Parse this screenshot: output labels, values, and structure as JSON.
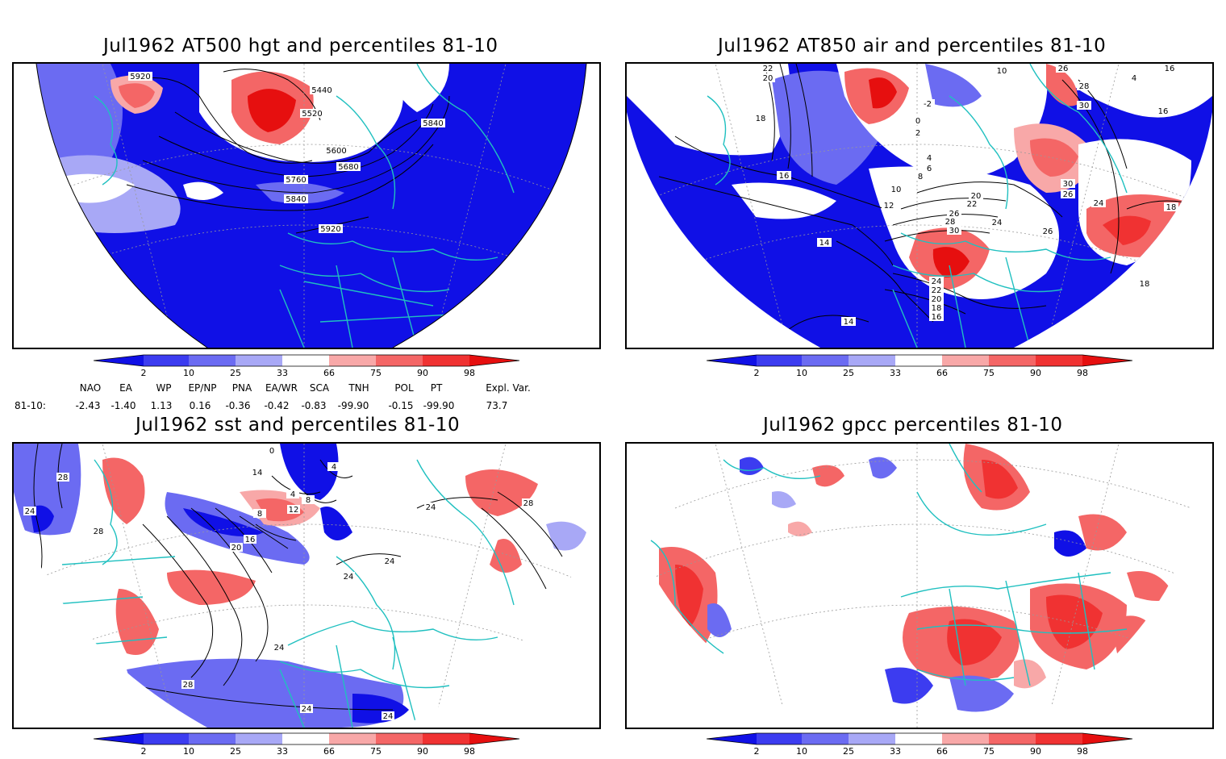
{
  "panels": [
    {
      "title": "Jul1962 AT500 hgt and percentiles 81-10",
      "contour_labels": [
        "5920",
        "5440",
        "5520",
        "5600",
        "5680",
        "5760",
        "5840",
        "5840",
        "5920"
      ]
    },
    {
      "title": "Jul1962 AT850 air and percentiles 81-10",
      "contour_labels": [
        "22",
        "20",
        "18",
        "16",
        "10",
        "12",
        "14",
        "14",
        "8",
        "6",
        "4",
        "2",
        "0",
        "-2",
        "20",
        "22",
        "24",
        "26",
        "28",
        "30",
        "24",
        "22",
        "20",
        "18",
        "16",
        "24",
        "26",
        "30",
        "26",
        "16",
        "18",
        "18",
        "16",
        "26",
        "28",
        "30",
        "10",
        "4"
      ]
    },
    {
      "title": "Jul1962 sst and percentiles 81-10",
      "contour_labels": [
        "28",
        "24",
        "28",
        "0",
        "4",
        "8",
        "12",
        "16",
        "20",
        "14",
        "8",
        "4",
        "24",
        "24",
        "24",
        "24",
        "28",
        "28",
        "24",
        "24"
      ]
    },
    {
      "title": "Jul1962 gpcc percentiles 81-10",
      "contour_labels": []
    }
  ],
  "colorbar": {
    "labels": [
      "2",
      "10",
      "25",
      "33",
      "66",
      "75",
      "90",
      "98"
    ],
    "colors": [
      "#1010e6",
      "#3c3cf0",
      "#6b6bf2",
      "#a8a8f6",
      "#ffffff",
      "#f8a8a8",
      "#f46666",
      "#f03232",
      "#e60f0f"
    ]
  },
  "indices": {
    "row_label": "81-10:",
    "headers": [
      "NAO",
      "EA",
      "WP",
      "EP/NP",
      "PNA",
      "EA/WR",
      "SCA",
      "TNH",
      "POL",
      "PT",
      "Expl. Var."
    ],
    "values": [
      "-2.43",
      "-1.40",
      "1.13",
      "0.16",
      "-0.36",
      "-0.42",
      "-0.83",
      "-99.90",
      "-0.15",
      "-99.90",
      "73.7"
    ]
  }
}
